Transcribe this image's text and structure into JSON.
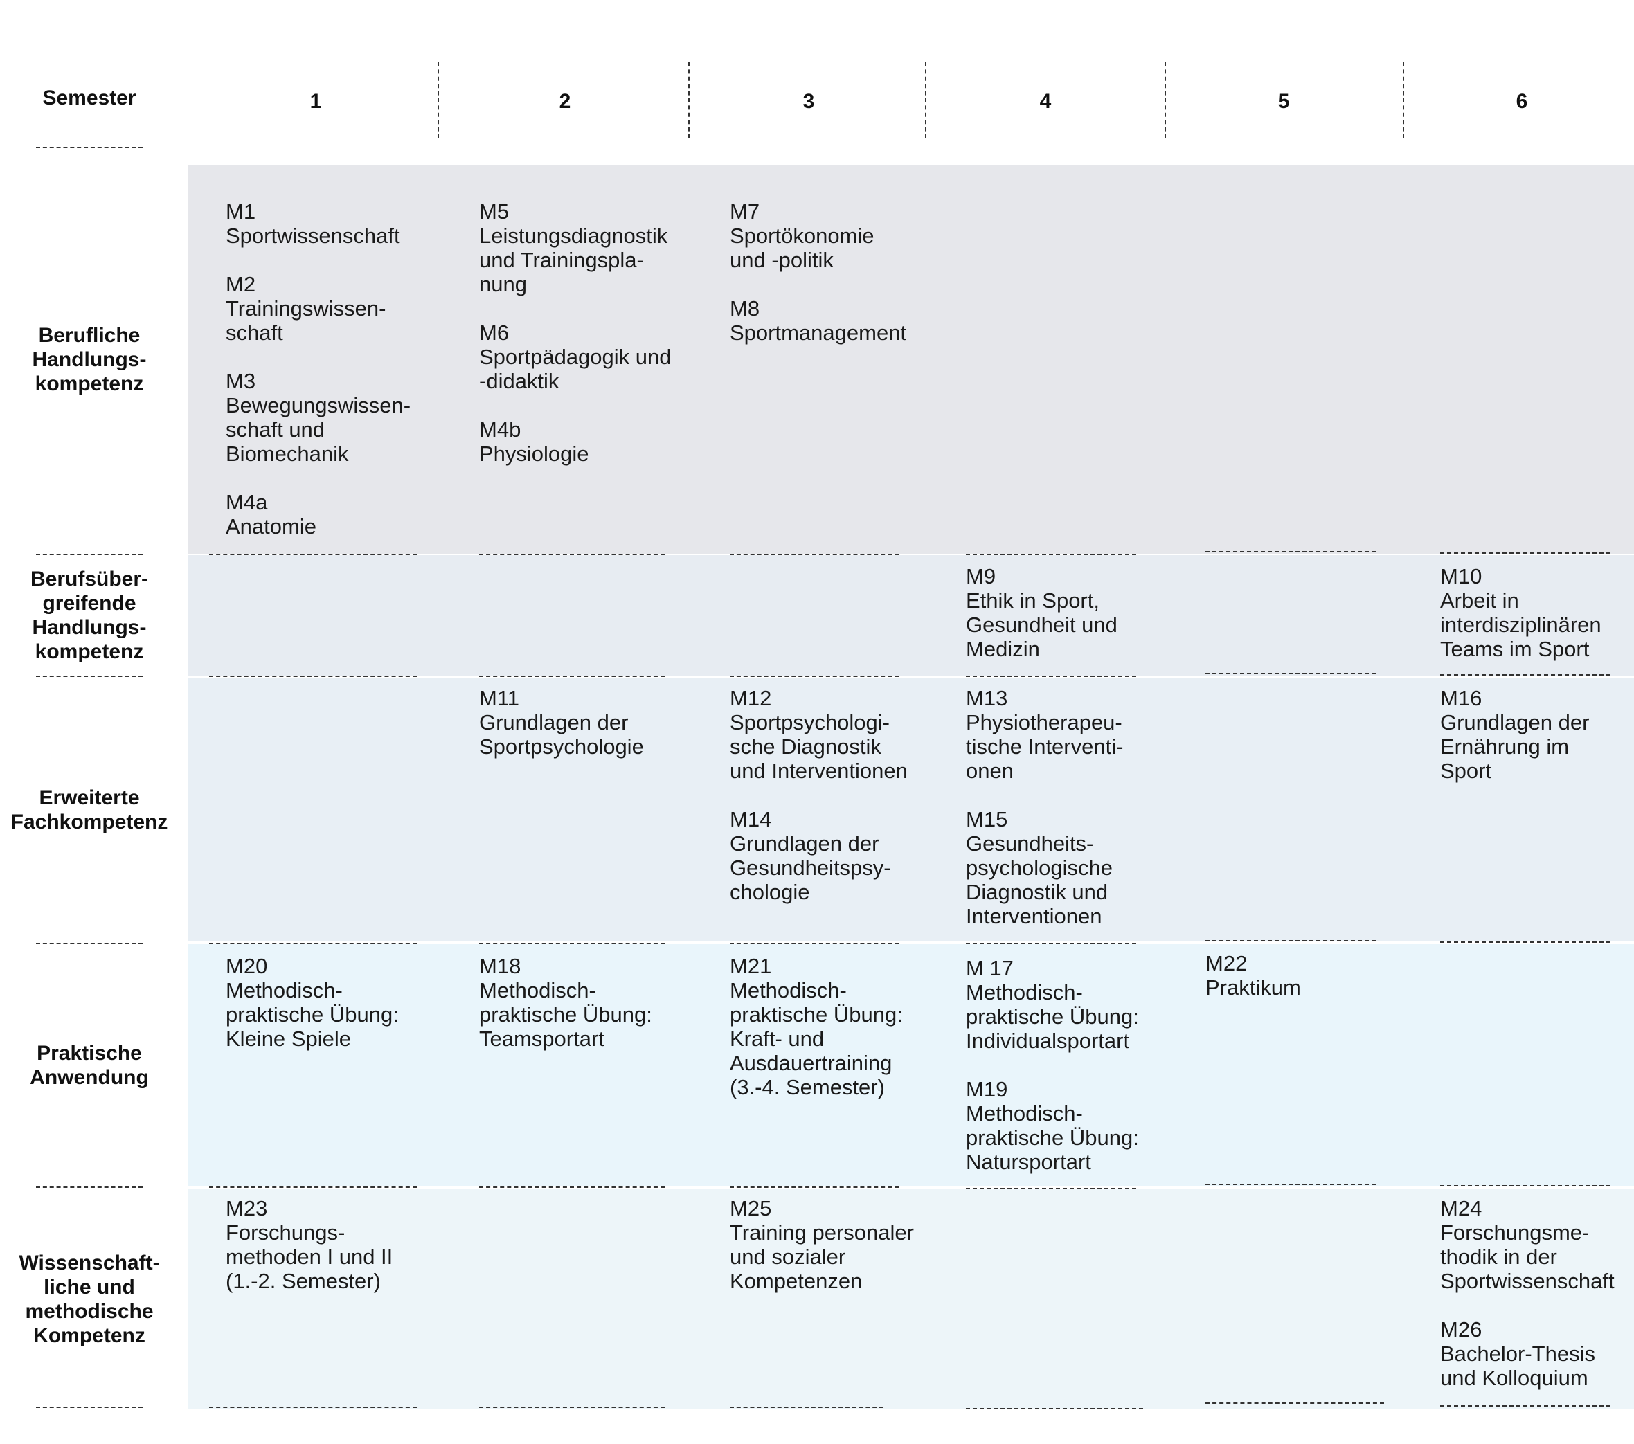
{
  "header": {
    "semester_label": "Semester",
    "semesters": [
      "1",
      "2",
      "3",
      "4",
      "5",
      "6"
    ]
  },
  "rows": [
    {
      "label_lines": [
        "Berufliche",
        "Handlungs-",
        "kompetenz"
      ]
    },
    {
      "label_lines": [
        "Berufsüber-",
        "greifende",
        "Handlungs-",
        "kompetenz"
      ]
    },
    {
      "label_lines": [
        "Erweiterte",
        "Fachkompetenz"
      ]
    },
    {
      "label_lines": [
        "Praktische",
        "Anwendung"
      ]
    },
    {
      "label_lines": [
        "Wissenschaft-",
        "liche und",
        "methodische",
        "Kompetenz"
      ]
    }
  ],
  "grid": [
    [
      [
        {
          "code": "M1",
          "lines": [
            "Sportwissenschaft"
          ]
        },
        {
          "code": "M2",
          "lines": [
            "Trainingswissen-",
            "schaft"
          ]
        },
        {
          "code": "M3",
          "lines": [
            "Bewegungswissen-",
            "schaft und",
            "Biomechanik"
          ]
        },
        {
          "code": "M4a",
          "lines": [
            "Anatomie"
          ]
        }
      ],
      [
        {
          "code": "M5",
          "lines": [
            "Leistungsdiagnostik",
            "und Trainingspla-",
            "nung"
          ]
        },
        {
          "code": "M6",
          "lines": [
            "Sportpädagogik und",
            "-didaktik"
          ]
        },
        {
          "code": "M4b",
          "lines": [
            "Physiologie"
          ]
        }
      ],
      [
        {
          "code": "M7",
          "lines": [
            "Sportökonomie",
            "und -politik"
          ]
        },
        {
          "code": "M8",
          "lines": [
            "Sportmanagement"
          ]
        }
      ],
      [],
      [],
      []
    ],
    [
      [],
      [],
      [],
      [
        {
          "code": "M9",
          "lines": [
            "Ethik in Sport,",
            "Gesundheit und",
            "Medizin"
          ]
        }
      ],
      [],
      [
        {
          "code": "M10",
          "lines": [
            "Arbeit in",
            "interdisziplinären",
            "Teams im Sport"
          ]
        }
      ]
    ],
    [
      [],
      [
        {
          "code": "M11",
          "lines": [
            "Grundlagen der",
            "Sportpsychologie"
          ]
        }
      ],
      [
        {
          "code": "M12",
          "lines": [
            "Sportpsychologi-",
            "sche Diagnostik",
            "und Interventionen"
          ]
        },
        {
          "code": "M14",
          "lines": [
            "Grundlagen der",
            "Gesundheitspsy-",
            "chologie"
          ]
        }
      ],
      [
        {
          "code": "M13",
          "lines": [
            "Physiotherapeu-",
            "tische Interventi-",
            "onen"
          ]
        },
        {
          "code": "M15",
          "lines": [
            "Gesundheits-",
            "psychologische",
            "Diagnostik und",
            "Interventionen"
          ]
        }
      ],
      [],
      [
        {
          "code": "M16",
          "lines": [
            "Grundlagen der",
            "Ernährung im",
            "Sport"
          ]
        }
      ]
    ],
    [
      [
        {
          "code": "M20",
          "lines": [
            "Methodisch-",
            "praktische Übung:",
            "Kleine Spiele"
          ]
        }
      ],
      [
        {
          "code": "M18",
          "lines": [
            "Methodisch-",
            "praktische Übung:",
            "Teamsportart"
          ]
        }
      ],
      [
        {
          "code": "M21",
          "lines": [
            "Methodisch-",
            "praktische Übung:",
            "Kraft- und",
            "Ausdauertraining",
            "(3.-4. Semester)"
          ]
        }
      ],
      [
        {
          "code": "M 17",
          "lines": [
            "Methodisch-",
            "praktische Übung:",
            "Individualsportart"
          ]
        },
        {
          "code": "M19",
          "lines": [
            "Methodisch-",
            "praktische Übung:",
            "Natursportart"
          ]
        }
      ],
      [
        {
          "code": "M22",
          "lines": [
            "Praktikum"
          ]
        }
      ],
      []
    ],
    [
      [
        {
          "code": "M23",
          "lines": [
            "Forschungs-",
            "methoden I und II",
            "(1.-2. Semester)"
          ]
        }
      ],
      [],
      [
        {
          "code": "M25",
          "lines": [
            "Training personaler",
            "und sozialer",
            "Kompetenzen"
          ]
        }
      ],
      [],
      [],
      [
        {
          "code": "M24",
          "lines": [
            "Forschungsme-",
            "thodik in der",
            "Sportwissenschaft"
          ]
        },
        {
          "code": "M26",
          "lines": [
            "Bachelor-Thesis",
            "und Kolloquium"
          ]
        }
      ]
    ]
  ]
}
